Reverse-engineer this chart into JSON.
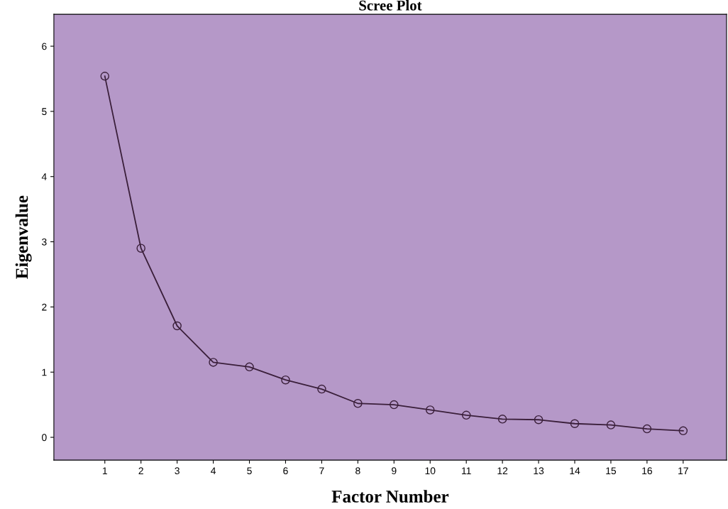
{
  "chart_data": {
    "type": "line",
    "title": "Scree Plot",
    "xlabel": "Factor Number",
    "ylabel": "Eigenvalue",
    "categories": [
      "1",
      "2",
      "3",
      "4",
      "5",
      "6",
      "7",
      "8",
      "9",
      "10",
      "11",
      "12",
      "13",
      "14",
      "15",
      "16",
      "17"
    ],
    "series": [
      {
        "color": "#3a1f3a",
        "values": [
          5.54,
          2.9,
          1.71,
          1.15,
          1.08,
          0.88,
          0.74,
          0.52,
          0.5,
          0.42,
          0.34,
          0.28,
          0.27,
          0.21,
          0.19,
          0.13,
          0.1
        ]
      }
    ],
    "ylim": [
      -0.35,
      6.49
    ],
    "yticks": [
      0,
      1,
      2,
      3,
      4,
      5,
      6
    ],
    "marker": "circle",
    "line_style": "solid",
    "grid": false,
    "legend": false
  }
}
